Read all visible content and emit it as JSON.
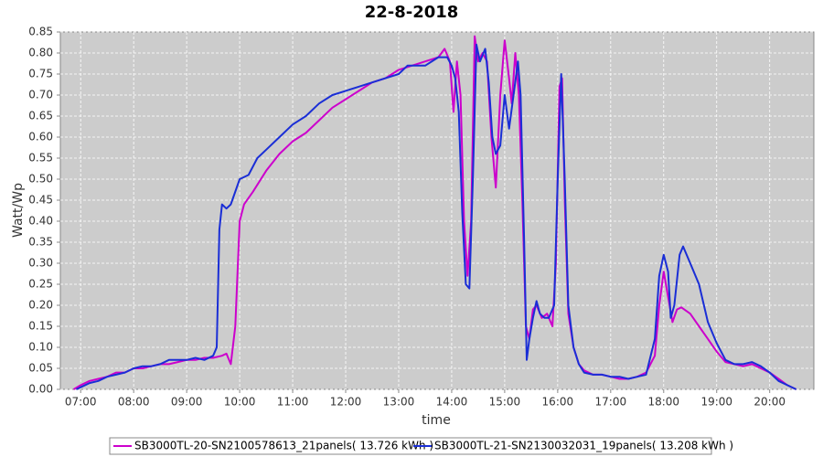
{
  "chart_data": {
    "type": "line",
    "title": "22-8-2018",
    "x_label": "time",
    "y_label": "Watt/Wp",
    "xlim": [
      "06:37",
      "20:50"
    ],
    "xticks": [
      "07:00",
      "08:00",
      "09:00",
      "10:00",
      "11:00",
      "12:00",
      "13:00",
      "14:00",
      "15:00",
      "16:00",
      "17:00",
      "18:00",
      "19:00",
      "20:00"
    ],
    "ylim": [
      0,
      0.85
    ],
    "yticks": [
      {
        "value": 0,
        "label": "0.00"
      },
      0.05,
      {
        "value": 0.1,
        "label": "0.10"
      },
      0.15,
      {
        "value": 0.2,
        "label": "0.20"
      },
      0.25,
      {
        "value": 0.3,
        "label": "0.30"
      },
      0.35,
      {
        "value": 0.4,
        "label": "0.40"
      },
      0.45,
      {
        "value": 0.5,
        "label": "0.50"
      },
      0.55,
      {
        "value": 0.6,
        "label": "0.60"
      },
      0.65,
      {
        "value": 0.7,
        "label": "0.70"
      },
      0.75,
      {
        "value": 0.8,
        "label": "0.80"
      },
      0.85
    ],
    "grid": true,
    "series": [
      {
        "name": "SB3000TL-20-SN2100578613_21panels( 13.726 kWh )",
        "color": "#cc00cc",
        "x": [
          "06:52",
          "07:00",
          "07:10",
          "07:20",
          "07:30",
          "07:40",
          "07:50",
          "08:00",
          "08:10",
          "08:20",
          "08:30",
          "08:40",
          "08:50",
          "09:00",
          "09:10",
          "09:20",
          "09:30",
          "09:40",
          "09:45",
          "09:50",
          "09:55",
          "10:00",
          "10:05",
          "10:15",
          "10:30",
          "10:45",
          "11:00",
          "11:15",
          "11:30",
          "11:45",
          "12:00",
          "12:15",
          "12:30",
          "12:45",
          "13:00",
          "13:15",
          "13:30",
          "13:45",
          "13:52",
          "13:58",
          "14:02",
          "14:06",
          "14:10",
          "14:14",
          "14:18",
          "14:22",
          "14:26",
          "14:30",
          "14:35",
          "14:40",
          "14:45",
          "14:50",
          "14:55",
          "15:00",
          "15:05",
          "15:08",
          "15:12",
          "15:16",
          "15:20",
          "15:24",
          "15:28",
          "15:32",
          "15:36",
          "15:42",
          "15:48",
          "15:54",
          "15:58",
          "16:02",
          "16:05",
          "16:08",
          "16:12",
          "16:18",
          "16:24",
          "16:30",
          "16:40",
          "16:50",
          "17:00",
          "17:10",
          "17:20",
          "17:30",
          "17:40",
          "17:50",
          "17:55",
          "18:00",
          "18:05",
          "18:10",
          "18:15",
          "18:20",
          "18:30",
          "18:40",
          "18:50",
          "19:00",
          "19:10",
          "19:20",
          "19:30",
          "19:40",
          "19:50",
          "20:00",
          "20:10",
          "20:20",
          "20:30"
        ],
        "values": [
          0,
          0.01,
          0.02,
          0.025,
          0.03,
          0.04,
          0.04,
          0.05,
          0.05,
          0.055,
          0.06,
          0.06,
          0.065,
          0.07,
          0.07,
          0.075,
          0.075,
          0.08,
          0.085,
          0.06,
          0.15,
          0.4,
          0.44,
          0.47,
          0.52,
          0.56,
          0.59,
          0.61,
          0.64,
          0.67,
          0.69,
          0.71,
          0.73,
          0.74,
          0.76,
          0.77,
          0.78,
          0.79,
          0.81,
          0.78,
          0.66,
          0.78,
          0.7,
          0.4,
          0.27,
          0.4,
          0.84,
          0.78,
          0.8,
          0.78,
          0.6,
          0.48,
          0.7,
          0.83,
          0.74,
          0.68,
          0.8,
          0.7,
          0.45,
          0.15,
          0.12,
          0.19,
          0.2,
          0.17,
          0.18,
          0.15,
          0.3,
          0.72,
          0.74,
          0.45,
          0.18,
          0.1,
          0.06,
          0.045,
          0.035,
          0.035,
          0.03,
          0.025,
          0.025,
          0.03,
          0.04,
          0.08,
          0.2,
          0.28,
          0.22,
          0.16,
          0.19,
          0.195,
          0.18,
          0.15,
          0.12,
          0.09,
          0.065,
          0.06,
          0.055,
          0.06,
          0.05,
          0.04,
          0.025,
          0.01,
          0
        ]
      },
      {
        "name": "SB3000TL-21-SN2130032031_19panels( 13.208 kWh )",
        "color": "#1a2ed6",
        "x": [
          "06:55",
          "07:00",
          "07:10",
          "07:20",
          "07:30",
          "07:40",
          "07:50",
          "08:00",
          "08:10",
          "08:20",
          "08:30",
          "08:40",
          "08:50",
          "09:00",
          "09:10",
          "09:20",
          "09:30",
          "09:34",
          "09:37",
          "09:40",
          "09:45",
          "09:50",
          "10:00",
          "10:10",
          "10:20",
          "10:30",
          "10:45",
          "11:00",
          "11:15",
          "11:30",
          "11:45",
          "12:00",
          "12:15",
          "12:30",
          "12:45",
          "13:00",
          "13:10",
          "13:30",
          "13:45",
          "13:55",
          "14:00",
          "14:04",
          "14:08",
          "14:12",
          "14:16",
          "14:20",
          "14:24",
          "14:28",
          "14:32",
          "14:38",
          "14:42",
          "14:46",
          "14:50",
          "14:55",
          "15:00",
          "15:05",
          "15:10",
          "15:15",
          "15:18",
          "15:22",
          "15:25",
          "15:28",
          "15:32",
          "15:36",
          "15:40",
          "15:45",
          "15:50",
          "15:56",
          "16:00",
          "16:04",
          "16:08",
          "16:12",
          "16:18",
          "16:24",
          "16:30",
          "16:40",
          "16:50",
          "17:00",
          "17:10",
          "17:20",
          "17:30",
          "17:40",
          "17:50",
          "17:55",
          "18:00",
          "18:05",
          "18:08",
          "18:12",
          "18:18",
          "18:22",
          "18:30",
          "18:40",
          "18:50",
          "19:00",
          "19:10",
          "19:20",
          "19:30",
          "19:40",
          "19:50",
          "20:00",
          "20:10",
          "20:20",
          "20:30"
        ],
        "values": [
          0,
          0.005,
          0.015,
          0.02,
          0.03,
          0.035,
          0.04,
          0.05,
          0.055,
          0.055,
          0.06,
          0.07,
          0.07,
          0.07,
          0.075,
          0.07,
          0.08,
          0.1,
          0.38,
          0.44,
          0.43,
          0.44,
          0.5,
          0.51,
          0.55,
          0.57,
          0.6,
          0.63,
          0.65,
          0.68,
          0.7,
          0.71,
          0.72,
          0.73,
          0.74,
          0.75,
          0.77,
          0.77,
          0.79,
          0.79,
          0.77,
          0.74,
          0.66,
          0.42,
          0.25,
          0.24,
          0.5,
          0.82,
          0.78,
          0.81,
          0.73,
          0.6,
          0.56,
          0.58,
          0.7,
          0.62,
          0.7,
          0.78,
          0.7,
          0.35,
          0.07,
          0.12,
          0.17,
          0.21,
          0.18,
          0.17,
          0.17,
          0.2,
          0.5,
          0.75,
          0.5,
          0.2,
          0.1,
          0.06,
          0.04,
          0.035,
          0.035,
          0.03,
          0.03,
          0.025,
          0.03,
          0.035,
          0.12,
          0.27,
          0.32,
          0.28,
          0.17,
          0.2,
          0.32,
          0.34,
          0.3,
          0.25,
          0.16,
          0.11,
          0.07,
          0.06,
          0.06,
          0.065,
          0.055,
          0.04,
          0.02,
          0.01,
          0
        ]
      }
    ]
  }
}
